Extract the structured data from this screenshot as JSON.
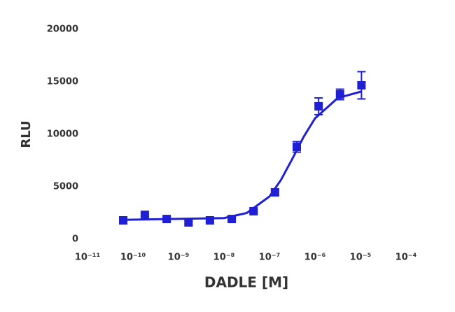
{
  "chart_data": {
    "type": "scatter",
    "xlabel": "DADLE [M]",
    "ylabel": "RLU",
    "xscale": "log",
    "xlim": [
      1e-11,
      0.0001
    ],
    "xticks": [
      {
        "value": 1e-11,
        "label": "10⁻¹¹"
      },
      {
        "value": 1e-10,
        "label": "10⁻¹⁰"
      },
      {
        "value": 1e-09,
        "label": "10⁻⁹"
      },
      {
        "value": 1e-08,
        "label": "10⁻⁸"
      },
      {
        "value": 1e-07,
        "label": "10⁻⁷"
      },
      {
        "value": 1e-06,
        "label": "10⁻⁶"
      },
      {
        "value": 1e-05,
        "label": "10⁻⁵"
      },
      {
        "value": 0.0001,
        "label": "10⁻⁴"
      }
    ],
    "ylim": [
      0,
      20000
    ],
    "yticks": [
      0,
      5000,
      10000,
      15000,
      20000
    ],
    "series": [
      {
        "color": "#1f1fd6",
        "x": [
          6.1e-11,
          1.82e-10,
          5.5e-10,
          1.66e-09,
          4.9e-09,
          1.48e-08,
          4.47e-08,
          1.32e-07,
          3.98e-07,
          1.2e-06,
          3.55e-06,
          1.05e-05
        ],
        "values": [
          1800,
          2330,
          1930,
          1600,
          1800,
          1930,
          2670,
          4470,
          8800,
          12670,
          13800,
          14670
        ],
        "errors": [
          150,
          150,
          150,
          150,
          150,
          150,
          150,
          250,
          500,
          800,
          500,
          1300
        ]
      }
    ],
    "fit": {
      "color": "#1f1fd6",
      "x": [
        6.1e-11,
        1e-08,
        3.16e-08,
        1e-07,
        1.78e-07,
        3.16e-07,
        5.62e-07,
        1e-06,
        3.16e-06,
        1.05e-05
      ],
      "values": [
        1850,
        2020,
        2500,
        4080,
        5640,
        7645,
        9755,
        11515,
        13460,
        14080
      ]
    }
  }
}
